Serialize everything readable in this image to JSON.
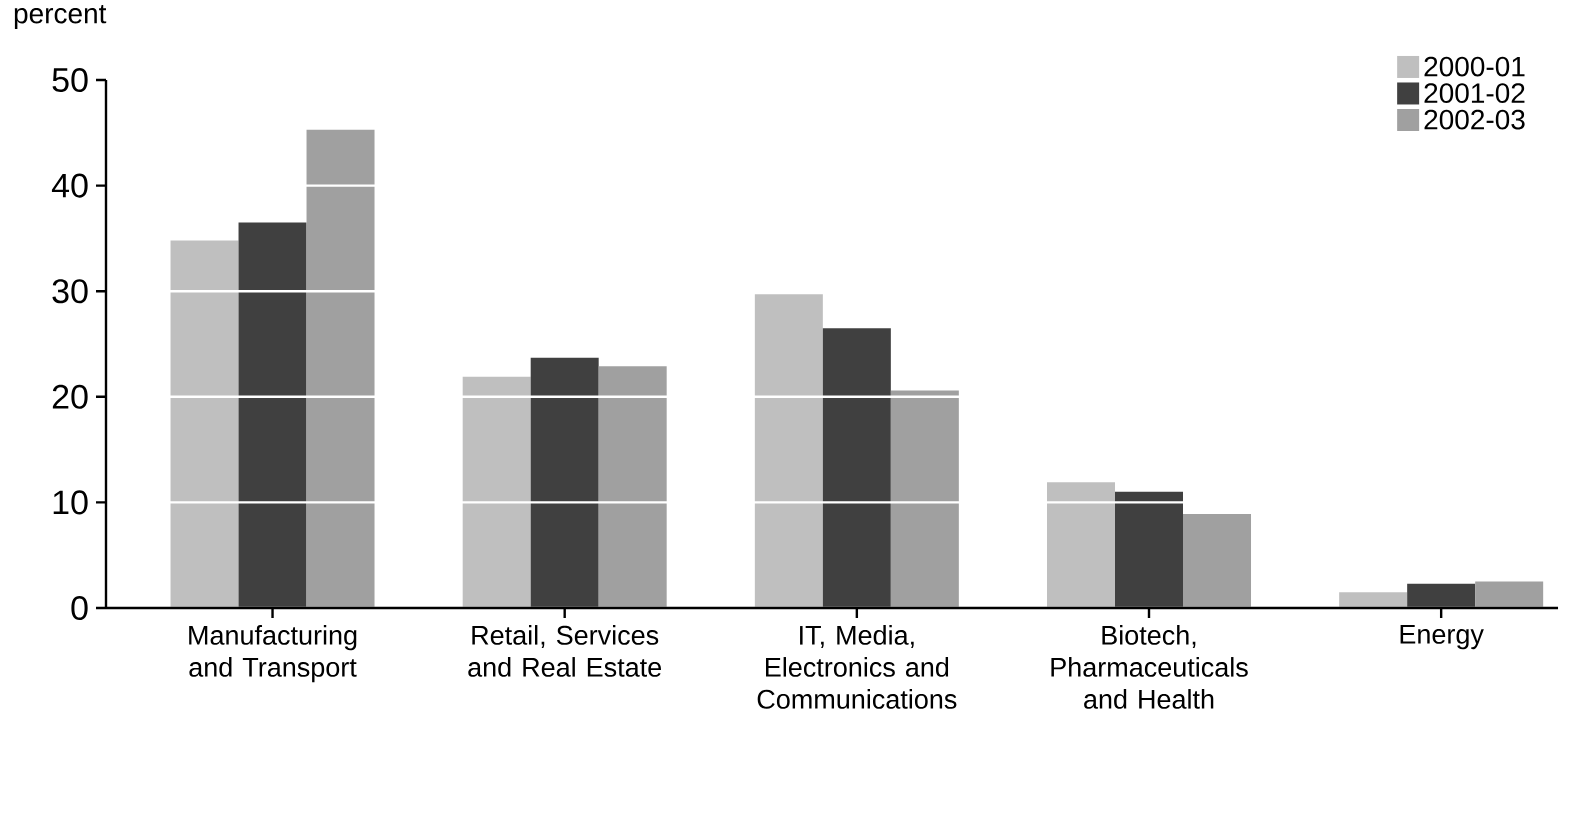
{
  "chart_data": {
    "type": "bar",
    "ylabel": "percent",
    "categories": [
      "Manufacturing and Transport",
      "Retail, Services and Real Estate",
      "IT, Media, Electronics and Communications",
      "Biotech, Pharmaceuticals and Health",
      "Energy"
    ],
    "series": [
      {
        "name": "2000-01",
        "color": "#bfbfbf",
        "values": [
          34.8,
          21.9,
          29.7,
          11.9,
          1.5
        ]
      },
      {
        "name": "2001-02",
        "color": "#404040",
        "values": [
          36.5,
          23.7,
          26.5,
          11.0,
          2.3
        ]
      },
      {
        "name": "2002-03",
        "color": "#a0a0a0",
        "values": [
          45.3,
          22.9,
          20.6,
          8.9,
          2.5
        ]
      }
    ],
    "ylim": [
      0,
      50
    ],
    "yticks": [
      0,
      10,
      20,
      30,
      40,
      50
    ],
    "grid": "y",
    "legend": "top right"
  }
}
